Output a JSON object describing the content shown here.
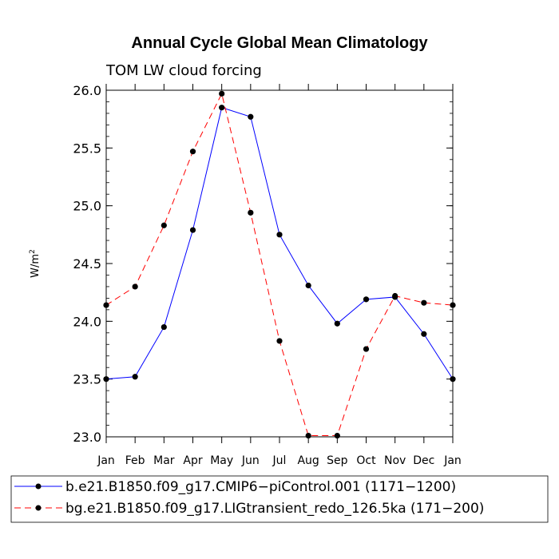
{
  "chart_data": {
    "type": "line",
    "title": "Annual Cycle Global Mean Climatology",
    "subtitle": "TOM LW cloud forcing",
    "ylabel": "W/m",
    "ylabel_superscript": "2",
    "xlabel": "",
    "categories": [
      "Jan",
      "Feb",
      "Mar",
      "Apr",
      "May",
      "Jun",
      "Jul",
      "Aug",
      "Sep",
      "Oct",
      "Nov",
      "Dec",
      "Jan"
    ],
    "ylim": [
      23.0,
      26.0
    ],
    "yticks": [
      "23.0",
      "23.5",
      "24.0",
      "24.5",
      "25.0",
      "25.5",
      "26.0"
    ],
    "series": [
      {
        "name": "b.e21.B1850.f09_g17.CMIP6−piControl.001 (1171−1200)",
        "color": "#0000ff",
        "dash": "solid",
        "values": [
          23.5,
          23.52,
          23.95,
          24.79,
          25.85,
          25.77,
          24.75,
          24.31,
          23.98,
          24.19,
          24.21,
          23.89,
          23.5
        ]
      },
      {
        "name": "bg.e21.B1850.f09_g17.LIGtransient_redo_126.5ka (171−200)",
        "color": "#ff0000",
        "dash": "dashed",
        "values": [
          24.14,
          24.3,
          24.83,
          25.47,
          25.97,
          24.94,
          23.83,
          23.01,
          23.01,
          23.76,
          24.22,
          24.16,
          24.14
        ]
      }
    ]
  }
}
